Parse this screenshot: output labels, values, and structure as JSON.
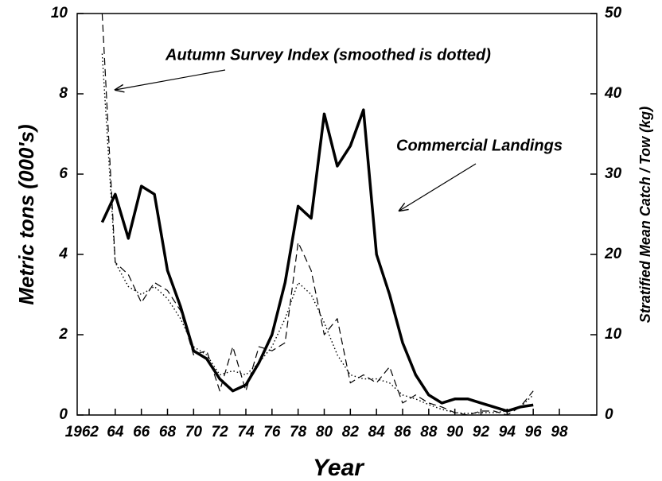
{
  "chart_data": {
    "type": "line",
    "xlabel": "Year",
    "ylabel": "Metric tons (000's)",
    "y2label": "Stratified Mean Catch / Tow (kg)",
    "annotations": [
      "Autumn Survey Index (smoothed is dotted)",
      "Commercial Landings"
    ],
    "x": [
      1963,
      1964,
      1965,
      1966,
      1967,
      1968,
      1969,
      1970,
      1971,
      1972,
      1973,
      1974,
      1975,
      1976,
      1977,
      1978,
      1979,
      1980,
      1981,
      1982,
      1983,
      1984,
      1985,
      1986,
      1987,
      1988,
      1989,
      1990,
      1991,
      1992,
      1993,
      1994,
      1995,
      1996
    ],
    "series": [
      {
        "color": "#000000",
        "style": "solid",
        "values": [
          4.8,
          5.5,
          4.4,
          5.7,
          5.5,
          3.6,
          2.7,
          1.6,
          1.4,
          0.9,
          0.6,
          0.75,
          1.3,
          2.0,
          3.3,
          5.2,
          4.9,
          7.5,
          6.2,
          6.7,
          7.6,
          4.0,
          3.0,
          1.8,
          1.0,
          0.5,
          0.3,
          0.4,
          0.4,
          0.3,
          0.2,
          0.1,
          0.2,
          0.25
        ]
      },
      {
        "color": "#000000",
        "style": "dashed",
        "axis": "y2",
        "values": [
          50,
          19,
          17.5,
          14,
          16.5,
          15.5,
          13,
          7.5,
          8,
          3,
          8.5,
          3,
          8.5,
          8,
          9,
          21.5,
          18,
          10,
          12,
          4,
          5,
          4,
          6,
          1.5,
          2.5,
          1.5,
          1,
          0.3,
          0,
          0.5,
          0.5,
          0,
          1,
          3
        ]
      },
      {
        "color": "#000000",
        "style": "dotted",
        "axis": "y2",
        "values": [
          45,
          19,
          16,
          15,
          16,
          14.5,
          12,
          8.5,
          7.5,
          5,
          5.5,
          5,
          6.5,
          8.5,
          12,
          16.5,
          15,
          11.5,
          7.5,
          5,
          4.5,
          4.5,
          4,
          2.5,
          2,
          1.3,
          0.7,
          0.3,
          0.2,
          0.3,
          0.3,
          0.5,
          1,
          2.5
        ]
      }
    ],
    "xlim": [
      1962,
      1998
    ],
    "xticks": [
      {
        "value": 1962,
        "label": "1962"
      },
      {
        "value": 1964,
        "label": "64"
      },
      {
        "value": 1966,
        "label": "66"
      },
      {
        "value": 1968,
        "label": "68"
      },
      {
        "value": 1970,
        "label": "70"
      },
      {
        "value": 1972,
        "label": "72"
      },
      {
        "value": 1974,
        "label": "74"
      },
      {
        "value": 1976,
        "label": "76"
      },
      {
        "value": 1978,
        "label": "78"
      },
      {
        "value": 1980,
        "label": "80"
      },
      {
        "value": 1982,
        "label": "82"
      },
      {
        "value": 1984,
        "label": "84"
      },
      {
        "value": 1986,
        "label": "86"
      },
      {
        "value": 1988,
        "label": "88"
      },
      {
        "value": 1990,
        "label": "90"
      },
      {
        "value": 1992,
        "label": "92"
      },
      {
        "value": 1994,
        "label": "94"
      },
      {
        "value": 1996,
        "label": "96"
      },
      {
        "value": 1998,
        "label": "98"
      }
    ],
    "ylim": [
      0,
      10
    ],
    "yticks": [
      0,
      2,
      4,
      6,
      8,
      10
    ],
    "y2lim": [
      0,
      50
    ],
    "y2ticks": [
      0,
      10,
      20,
      30,
      40,
      50
    ]
  }
}
